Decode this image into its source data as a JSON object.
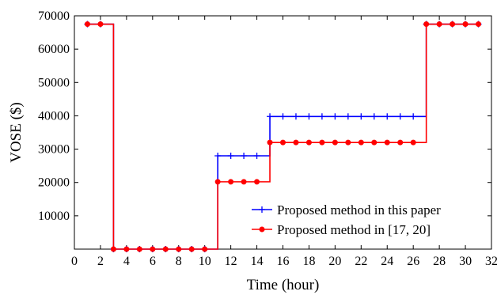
{
  "chart_data": {
    "type": "line",
    "title": "",
    "xlabel": "Time (hour)",
    "ylabel": "VOSE ($)",
    "xlim": [
      0,
      32
    ],
    "ylim": [
      0,
      70000
    ],
    "xticks": [
      0,
      2,
      4,
      6,
      8,
      10,
      12,
      14,
      16,
      18,
      20,
      22,
      24,
      26,
      28,
      30,
      32
    ],
    "xtick_labels": [
      "0",
      "2",
      "4",
      "6",
      "8",
      "10",
      "12",
      "14",
      "16",
      "18",
      "20",
      "22",
      "24",
      "26",
      "28",
      "30",
      "32"
    ],
    "yticks": [
      10000,
      20000,
      30000,
      40000,
      50000,
      60000,
      70000
    ],
    "ytick_labels": [
      "10000",
      "20000",
      "30000",
      "40000",
      "50000",
      "60000",
      "70000"
    ],
    "grid": false,
    "legend_position": "bottom-right",
    "x": [
      1,
      2,
      3,
      4,
      5,
      6,
      7,
      8,
      9,
      10,
      11,
      12,
      13,
      14,
      15,
      16,
      17,
      18,
      19,
      20,
      21,
      22,
      23,
      24,
      25,
      26,
      27,
      28,
      29,
      30,
      31
    ],
    "series": [
      {
        "name": "Proposed method in this paper",
        "color": "#0000ff",
        "marker": "plus",
        "step": "post",
        "values": [
          67500,
          67500,
          0,
          0,
          0,
          0,
          0,
          0,
          0,
          0,
          28000,
          28000,
          28000,
          28000,
          39800,
          39800,
          39800,
          39800,
          39800,
          39800,
          39800,
          39800,
          39800,
          39800,
          39800,
          39800,
          67500,
          67500,
          67500,
          67500,
          67500
        ]
      },
      {
        "name": "Proposed method in [17, 20]",
        "color": "#ff0000",
        "marker": "circle",
        "step": "post",
        "values": [
          67500,
          67500,
          0,
          0,
          0,
          0,
          0,
          0,
          0,
          0,
          20200,
          20200,
          20200,
          20200,
          32000,
          32000,
          32000,
          32000,
          32000,
          32000,
          32000,
          32000,
          32000,
          32000,
          32000,
          32000,
          67500,
          67500,
          67500,
          67500,
          67500
        ]
      }
    ]
  }
}
